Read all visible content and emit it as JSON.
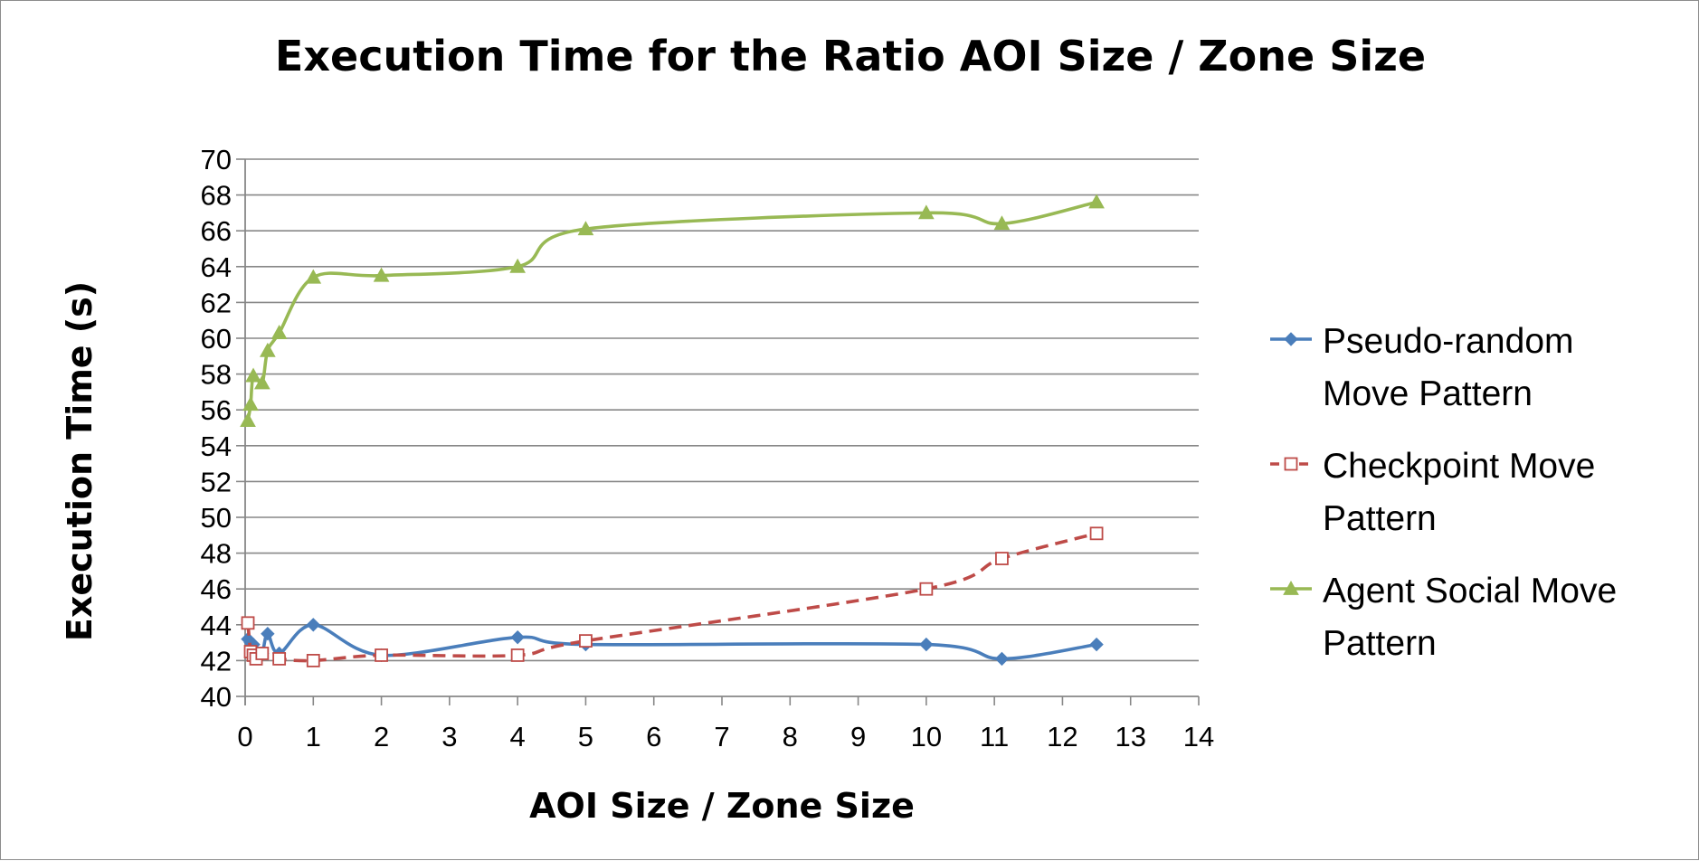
{
  "chart_data": {
    "type": "line",
    "title": "Execution Time for the Ratio AOI Size / Zone Size",
    "xlabel": "AOI Size / Zone Size",
    "ylabel": "Execution Time (s)",
    "xlim": [
      0,
      14
    ],
    "ylim": [
      40,
      70
    ],
    "x_ticks": [
      0,
      1,
      2,
      3,
      4,
      5,
      6,
      7,
      8,
      9,
      10,
      11,
      12,
      13,
      14
    ],
    "y_ticks": [
      40,
      42,
      44,
      46,
      48,
      50,
      52,
      54,
      56,
      58,
      60,
      62,
      64,
      66,
      68,
      70
    ],
    "grid": "horizontal",
    "legend_position": "right",
    "series": [
      {
        "name": "Pseudo-random Move Pattern",
        "legend_lines": [
          "Pseudo-random",
          "Move Pattern"
        ],
        "color": "#4a7ebb",
        "marker": "diamond",
        "line_style": "solid",
        "x": [
          0.04,
          0.08,
          0.12,
          0.16,
          0.25,
          0.33,
          0.5,
          1,
          2,
          4,
          5,
          10,
          11.11,
          12.5
        ],
        "y": [
          43.2,
          43.0,
          42.9,
          42.2,
          42.4,
          43.5,
          42.4,
          44.0,
          42.3,
          43.3,
          42.9,
          42.9,
          42.1,
          42.9
        ]
      },
      {
        "name": "Checkpoint Move Pattern",
        "legend_lines": [
          "Checkpoint Move",
          "Pattern"
        ],
        "color": "#be4b48",
        "marker": "square-open",
        "line_style": "dashed",
        "x": [
          0.04,
          0.08,
          0.12,
          0.16,
          0.25,
          0.5,
          1,
          2,
          4,
          5,
          10,
          11.11,
          12.5
        ],
        "y": [
          44.1,
          42.5,
          42.3,
          42.1,
          42.4,
          42.1,
          42.0,
          42.3,
          42.3,
          43.1,
          46.0,
          47.7,
          49.1
        ]
      },
      {
        "name": "Agent Social Move Pattern",
        "legend_lines": [
          "Agent Social Move",
          "Pattern"
        ],
        "color": "#98b954",
        "marker": "triangle",
        "line_style": "solid",
        "x": [
          0.04,
          0.08,
          0.12,
          0.25,
          0.33,
          0.5,
          1,
          2,
          4,
          5,
          10,
          11.11,
          12.5
        ],
        "y": [
          55.4,
          56.3,
          57.9,
          57.5,
          59.3,
          60.3,
          63.4,
          63.5,
          64.0,
          66.1,
          67.0,
          66.4,
          67.6
        ]
      }
    ]
  }
}
